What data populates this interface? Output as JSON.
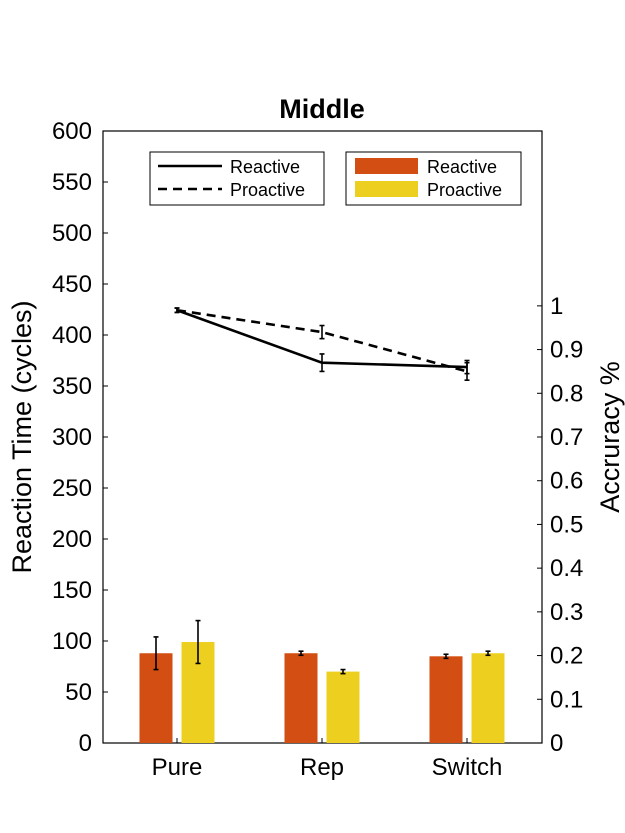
{
  "chart_data": {
    "type": "bar+line",
    "title": "Middle",
    "categories": [
      "Pure",
      "Rep",
      "Switch"
    ],
    "left_axis": {
      "label": "Reaction Time (cycles)",
      "ylim": [
        0,
        600
      ],
      "ticks": [
        0,
        50,
        100,
        150,
        200,
        250,
        300,
        350,
        400,
        450,
        500,
        550,
        600
      ]
    },
    "right_axis": {
      "label": "Accruracy %",
      "ylim": [
        0,
        1.4
      ],
      "ticks": [
        0,
        0.1,
        0.2,
        0.3,
        0.4,
        0.5,
        0.6,
        0.7,
        0.8,
        0.9,
        1
      ],
      "tick_labels": [
        "0",
        "0.1",
        "0.2",
        "0.3",
        "0.4",
        "0.5",
        "0.6",
        "0.7",
        "0.8",
        "0.9",
        "1"
      ]
    },
    "bar_series": [
      {
        "name": "Reactive",
        "color": "#d24e12",
        "values": [
          88,
          88,
          85
        ],
        "errors": [
          16,
          2,
          2
        ]
      },
      {
        "name": "Proactive",
        "color": "#edd01f",
        "values": [
          99,
          70,
          88
        ],
        "errors": [
          21,
          2,
          2
        ]
      }
    ],
    "line_series": [
      {
        "name": "Reactive",
        "style": "solid",
        "values": [
          0.99,
          0.87,
          0.86
        ],
        "errors": [
          0.005,
          0.02,
          0.015
        ]
      },
      {
        "name": "Proactive",
        "style": "dashed",
        "values": [
          0.99,
          0.94,
          0.85
        ],
        "errors": [
          0.005,
          0.015,
          0.02
        ]
      }
    ],
    "legends": [
      {
        "kind": "line",
        "position": "top-left",
        "entries": [
          "Reactive",
          "Proactive"
        ]
      },
      {
        "kind": "bar",
        "position": "top-right",
        "entries": [
          "Reactive",
          "Proactive"
        ]
      }
    ],
    "grid": false
  }
}
